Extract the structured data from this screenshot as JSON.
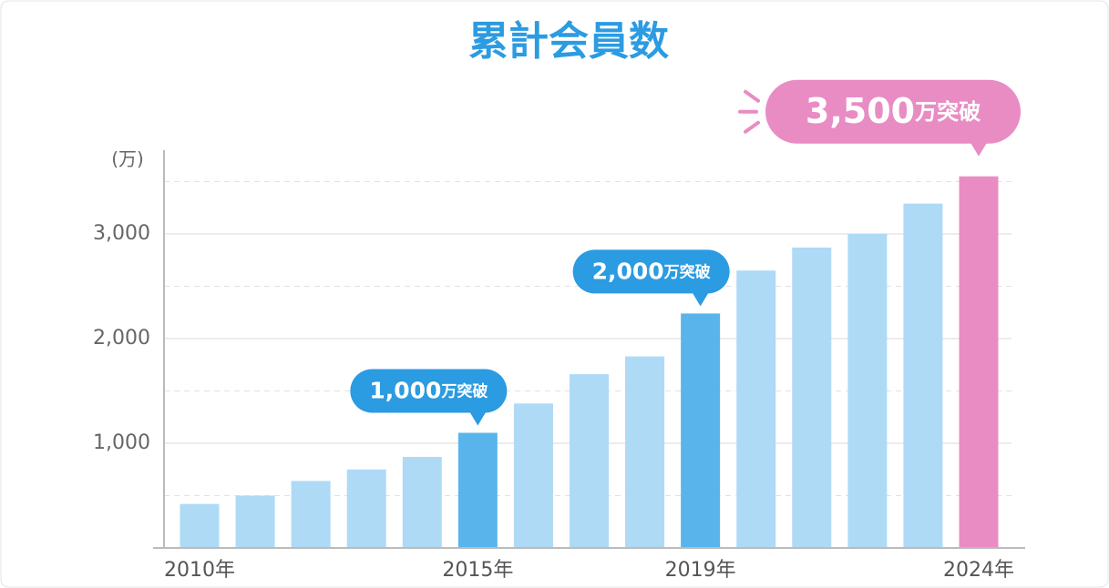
{
  "chart_data": {
    "type": "bar",
    "title": "累計会員数",
    "y_label": "(万)",
    "categories": [
      "2010年",
      null,
      null,
      null,
      null,
      "2015年",
      null,
      null,
      null,
      "2019年",
      null,
      null,
      null,
      null,
      "2024年"
    ],
    "values": [
      420,
      500,
      640,
      750,
      870,
      1100,
      1380,
      1660,
      1830,
      2240,
      2650,
      2870,
      3000,
      3290,
      3550
    ],
    "colors": [
      "#aedaf6",
      "#aedaf6",
      "#aedaf6",
      "#aedaf6",
      "#aedaf6",
      "#5ab4ec",
      "#aedaf6",
      "#aedaf6",
      "#aedaf6",
      "#5ab4ec",
      "#aedaf6",
      "#aedaf6",
      "#aedaf6",
      "#aedaf6",
      "#e98cc4"
    ],
    "ylim": [
      0,
      3800
    ],
    "yticks": [
      {
        "value": 1000,
        "label": "1,000"
      },
      {
        "value": 2000,
        "label": "2,000"
      },
      {
        "value": 3000,
        "label": "3,000"
      }
    ],
    "minor_yticks": [
      500,
      1500,
      2500,
      3500
    ],
    "grid": true,
    "annotations": [
      {
        "category": "2015年",
        "number": "1,000",
        "suffix": "万突破",
        "color": "#2b9be2"
      },
      {
        "category": "2019年",
        "number": "2,000",
        "suffix": "万突破",
        "color": "#2b9be2"
      },
      {
        "category": "2024年",
        "number": "3,500",
        "suffix": "万突破",
        "color": "#e98cc4"
      }
    ]
  }
}
